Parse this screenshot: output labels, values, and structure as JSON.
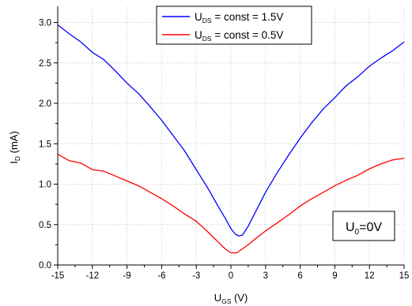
{
  "chart_data": {
    "type": "line",
    "xlabel": {
      "main": "U",
      "sub": "GS",
      "suffix": " (V)"
    },
    "ylabel": {
      "main": "I",
      "sub": "D",
      "suffix": " (mA)"
    },
    "xlim": [
      -15,
      15
    ],
    "ylim": [
      0,
      3.2
    ],
    "xticks": [
      -15,
      -12,
      -9,
      -6,
      -3,
      0,
      3,
      6,
      9,
      12,
      15
    ],
    "yticks": [
      0.0,
      0.5,
      1.0,
      1.5,
      2.0,
      2.5,
      3.0
    ],
    "xtick_labels": [
      "-15",
      "-12",
      "-9",
      "-6",
      "-3",
      "0",
      "3",
      "6",
      "9",
      "12",
      "15"
    ],
    "ytick_labels": [
      "0.0",
      "0.5",
      "1.0",
      "1.5",
      "2.0",
      "2.5",
      "3.0"
    ],
    "grid": true,
    "legend_position": "top-center",
    "annotation": {
      "main": "U",
      "sub": "0",
      "suffix": "=0V"
    },
    "series": [
      {
        "name": "U_DS = const = 1.5V",
        "legend": {
          "main": "U",
          "sub": "DS",
          "suffix": " = const = 1.5V"
        },
        "color": "#0000ff",
        "x": [
          -15,
          -14,
          -13,
          -12,
          -11,
          -10,
          -9,
          -8,
          -7,
          -6,
          -5,
          -4,
          -3,
          -2,
          -1,
          -0.5,
          0,
          0.4,
          0.7,
          1,
          1.5,
          2,
          3,
          4,
          5,
          6,
          7,
          8,
          9,
          10,
          11,
          12,
          13,
          14,
          15
        ],
        "y": [
          2.97,
          2.86,
          2.76,
          2.63,
          2.54,
          2.4,
          2.25,
          2.12,
          1.96,
          1.79,
          1.6,
          1.41,
          1.18,
          0.95,
          0.7,
          0.58,
          0.45,
          0.38,
          0.36,
          0.37,
          0.48,
          0.62,
          0.9,
          1.14,
          1.36,
          1.57,
          1.76,
          1.93,
          2.07,
          2.22,
          2.33,
          2.46,
          2.56,
          2.65,
          2.76
        ]
      },
      {
        "name": "U_DS = const = 0.5V",
        "legend": {
          "main": "U",
          "sub": "DS",
          "suffix": " = const = 0.5V"
        },
        "color": "#ff0000",
        "x": [
          -15,
          -14,
          -13,
          -12,
          -11,
          -10,
          -9,
          -8,
          -7,
          -6,
          -5,
          -4,
          -3,
          -2,
          -1,
          -0.5,
          0,
          0.5,
          1,
          1.5,
          2,
          3,
          4,
          5,
          6,
          7,
          8,
          9,
          10,
          11,
          12,
          13,
          14,
          15
        ],
        "y": [
          1.37,
          1.29,
          1.26,
          1.18,
          1.16,
          1.1,
          1.04,
          0.98,
          0.9,
          0.82,
          0.73,
          0.63,
          0.54,
          0.41,
          0.27,
          0.2,
          0.15,
          0.15,
          0.2,
          0.25,
          0.31,
          0.42,
          0.52,
          0.62,
          0.73,
          0.82,
          0.9,
          0.98,
          1.05,
          1.11,
          1.19,
          1.25,
          1.3,
          1.32
        ]
      }
    ]
  }
}
